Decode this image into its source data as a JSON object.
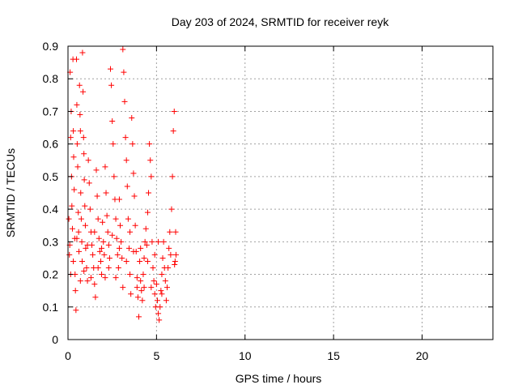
{
  "chart_data": {
    "type": "scatter",
    "title": "Day 203 of 2024, SRMTID for receiver reyk",
    "xlabel": "GPS time / hours",
    "ylabel": "SRMTID / TECUs",
    "xlim": [
      0,
      24
    ],
    "ylim": [
      0,
      0.9
    ],
    "xticks": [
      0,
      5,
      10,
      15,
      20
    ],
    "xtick_labels": [
      "0",
      "5",
      "10",
      "15",
      "20"
    ],
    "yticks": [
      0,
      0.1,
      0.2,
      0.3,
      0.4,
      0.5,
      0.6,
      0.7,
      0.8,
      0.9
    ],
    "ytick_labels": [
      "0",
      "0.1",
      "0.2",
      "0.3",
      "0.4",
      "0.5",
      "0.6",
      "0.7",
      "0.8",
      "0.9"
    ],
    "grid": true,
    "marker": "+",
    "marker_color": "#ff0000",
    "grid_color": "#a0a0a0",
    "series": [
      {
        "name": "SRMTID",
        "points": [
          [
            0.05,
            0.37
          ],
          [
            0.08,
            0.26
          ],
          [
            0.1,
            0.29
          ],
          [
            0.12,
            0.82
          ],
          [
            0.15,
            0.62
          ],
          [
            0.18,
            0.7
          ],
          [
            0.2,
            0.5
          ],
          [
            0.22,
            0.41
          ],
          [
            0.25,
            0.34
          ],
          [
            0.28,
            0.86
          ],
          [
            0.3,
            0.64
          ],
          [
            0.32,
            0.56
          ],
          [
            0.35,
            0.46
          ],
          [
            0.38,
            0.31
          ],
          [
            0.4,
            0.2
          ],
          [
            0.42,
            0.15
          ],
          [
            0.45,
            0.09
          ],
          [
            0.48,
            0.86
          ],
          [
            0.5,
            0.72
          ],
          [
            0.52,
            0.6
          ],
          [
            0.55,
            0.53
          ],
          [
            0.58,
            0.39
          ],
          [
            0.6,
            0.33
          ],
          [
            0.62,
            0.27
          ],
          [
            0.65,
            0.78
          ],
          [
            0.68,
            0.69
          ],
          [
            0.7,
            0.64
          ],
          [
            0.72,
            0.45
          ],
          [
            0.75,
            0.37
          ],
          [
            0.78,
            0.3
          ],
          [
            0.8,
            0.24
          ],
          [
            0.82,
            0.88
          ],
          [
            0.85,
            0.76
          ],
          [
            0.88,
            0.62
          ],
          [
            0.9,
            0.57
          ],
          [
            0.92,
            0.49
          ],
          [
            0.95,
            0.41
          ],
          [
            0.98,
            0.35
          ],
          [
            1.0,
            0.28
          ],
          [
            1.05,
            0.22
          ],
          [
            1.1,
            0.18
          ],
          [
            1.15,
            0.55
          ],
          [
            1.2,
            0.48
          ],
          [
            1.25,
            0.4
          ],
          [
            1.3,
            0.33
          ],
          [
            1.35,
            0.29
          ],
          [
            1.4,
            0.26
          ],
          [
            1.45,
            0.22
          ],
          [
            1.5,
            0.17
          ],
          [
            1.55,
            0.13
          ],
          [
            1.6,
            0.52
          ],
          [
            1.65,
            0.44
          ],
          [
            1.7,
            0.37
          ],
          [
            1.75,
            0.31
          ],
          [
            1.8,
            0.27
          ],
          [
            1.85,
            0.24
          ],
          [
            1.9,
            0.2
          ],
          [
            1.95,
            0.36
          ],
          [
            2.0,
            0.3
          ],
          [
            2.05,
            0.26
          ],
          [
            2.1,
            0.53
          ],
          [
            2.15,
            0.45
          ],
          [
            2.2,
            0.38
          ],
          [
            2.25,
            0.33
          ],
          [
            2.3,
            0.29
          ],
          [
            2.35,
            0.25
          ],
          [
            2.4,
            0.83
          ],
          [
            2.45,
            0.78
          ],
          [
            2.5,
            0.67
          ],
          [
            2.55,
            0.6
          ],
          [
            2.6,
            0.5
          ],
          [
            2.65,
            0.43
          ],
          [
            2.7,
            0.37
          ],
          [
            2.75,
            0.31
          ],
          [
            2.8,
            0.26
          ],
          [
            2.85,
            0.22
          ],
          [
            2.9,
            0.43
          ],
          [
            2.95,
            0.35
          ],
          [
            3.0,
            0.3
          ],
          [
            3.05,
            0.25
          ],
          [
            3.1,
            0.89
          ],
          [
            3.15,
            0.82
          ],
          [
            3.2,
            0.73
          ],
          [
            3.25,
            0.62
          ],
          [
            3.3,
            0.55
          ],
          [
            3.35,
            0.47
          ],
          [
            3.4,
            0.37
          ],
          [
            3.45,
            0.28
          ],
          [
            3.5,
            0.2
          ],
          [
            3.55,
            0.14
          ],
          [
            3.6,
            0.68
          ],
          [
            3.65,
            0.6
          ],
          [
            3.7,
            0.51
          ],
          [
            3.75,
            0.44
          ],
          [
            3.8,
            0.35
          ],
          [
            3.85,
            0.27
          ],
          [
            3.9,
            0.19
          ],
          [
            3.95,
            0.13
          ],
          [
            4.0,
            0.07
          ],
          [
            4.05,
            0.24
          ],
          [
            4.1,
            0.18
          ],
          [
            4.15,
            0.15
          ],
          [
            4.2,
            0.12
          ],
          [
            4.25,
            0.2
          ],
          [
            4.3,
            0.25
          ],
          [
            4.35,
            0.3
          ],
          [
            4.4,
            0.34
          ],
          [
            4.45,
            0.29
          ],
          [
            4.5,
            0.39
          ],
          [
            4.55,
            0.45
          ],
          [
            4.6,
            0.6
          ],
          [
            4.65,
            0.55
          ],
          [
            4.7,
            0.5
          ],
          [
            4.75,
            0.3
          ],
          [
            4.8,
            0.22
          ],
          [
            4.85,
            0.18
          ],
          [
            4.9,
            0.14
          ],
          [
            4.95,
            0.1
          ],
          [
            5.0,
            0.17
          ],
          [
            5.05,
            0.12
          ],
          [
            5.1,
            0.08
          ],
          [
            5.15,
            0.06
          ],
          [
            5.2,
            0.1
          ],
          [
            5.25,
            0.15
          ],
          [
            5.3,
            0.2
          ],
          [
            5.35,
            0.25
          ],
          [
            5.4,
            0.3
          ],
          [
            5.45,
            0.22
          ],
          [
            5.5,
            0.18
          ],
          [
            5.55,
            0.12
          ],
          [
            5.6,
            0.16
          ],
          [
            5.65,
            0.22
          ],
          [
            5.7,
            0.28
          ],
          [
            5.75,
            0.33
          ],
          [
            5.8,
            0.26
          ],
          [
            5.85,
            0.4
          ],
          [
            5.9,
            0.5
          ],
          [
            5.95,
            0.64
          ],
          [
            6.0,
            0.7
          ],
          [
            6.02,
            0.23
          ],
          [
            6.05,
            0.24
          ],
          [
            6.08,
            0.33
          ],
          [
            6.1,
            0.26
          ],
          [
            0.15,
            0.2
          ],
          [
            0.3,
            0.24
          ],
          [
            0.5,
            0.31
          ],
          [
            0.7,
            0.18
          ],
          [
            0.9,
            0.21
          ],
          [
            1.1,
            0.29
          ],
          [
            1.3,
            0.19
          ],
          [
            1.5,
            0.33
          ],
          [
            1.7,
            0.22
          ],
          [
            1.9,
            0.28
          ],
          [
            2.1,
            0.19
          ],
          [
            2.3,
            0.22
          ],
          [
            2.5,
            0.32
          ],
          [
            2.7,
            0.19
          ],
          [
            2.9,
            0.28
          ],
          [
            3.1,
            0.16
          ],
          [
            3.3,
            0.24
          ],
          [
            3.5,
            0.33
          ],
          [
            3.7,
            0.27
          ],
          [
            3.9,
            0.16
          ],
          [
            4.1,
            0.28
          ],
          [
            4.3,
            0.16
          ],
          [
            4.5,
            0.24
          ],
          [
            4.7,
            0.16
          ],
          [
            4.9,
            0.26
          ],
          [
            5.1,
            0.3
          ],
          [
            5.3,
            0.14
          ]
        ]
      }
    ]
  }
}
